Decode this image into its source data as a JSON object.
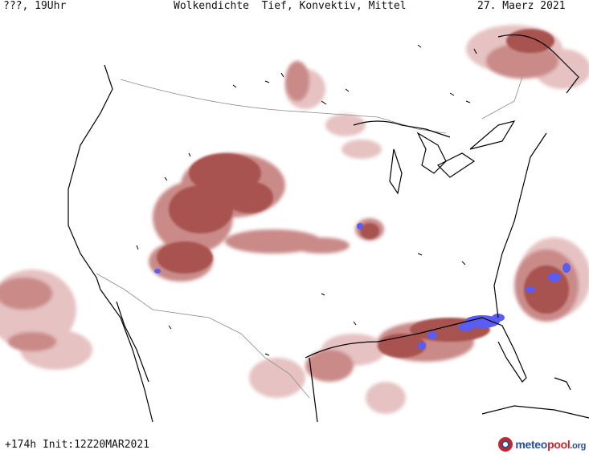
{
  "header": {
    "location_time": "???, 19Uhr",
    "title": "Wolkendichte  Tief, Konvektiv, Mittel",
    "date": "27. Maerz 2021"
  },
  "footer": {
    "run_info": "+174h Init:12Z20MAR2021",
    "logo_meteo": "meteo",
    "logo_pool": "pool",
    "logo_tld": ".org"
  },
  "colors": {
    "cloud_light": "#e6c2c2",
    "cloud_mid": "#c98a88",
    "cloud_dense": "#a8524f",
    "cloud_max": "#5a5cf2",
    "coastline": "#000000",
    "borders": "#8a8a8a"
  }
}
